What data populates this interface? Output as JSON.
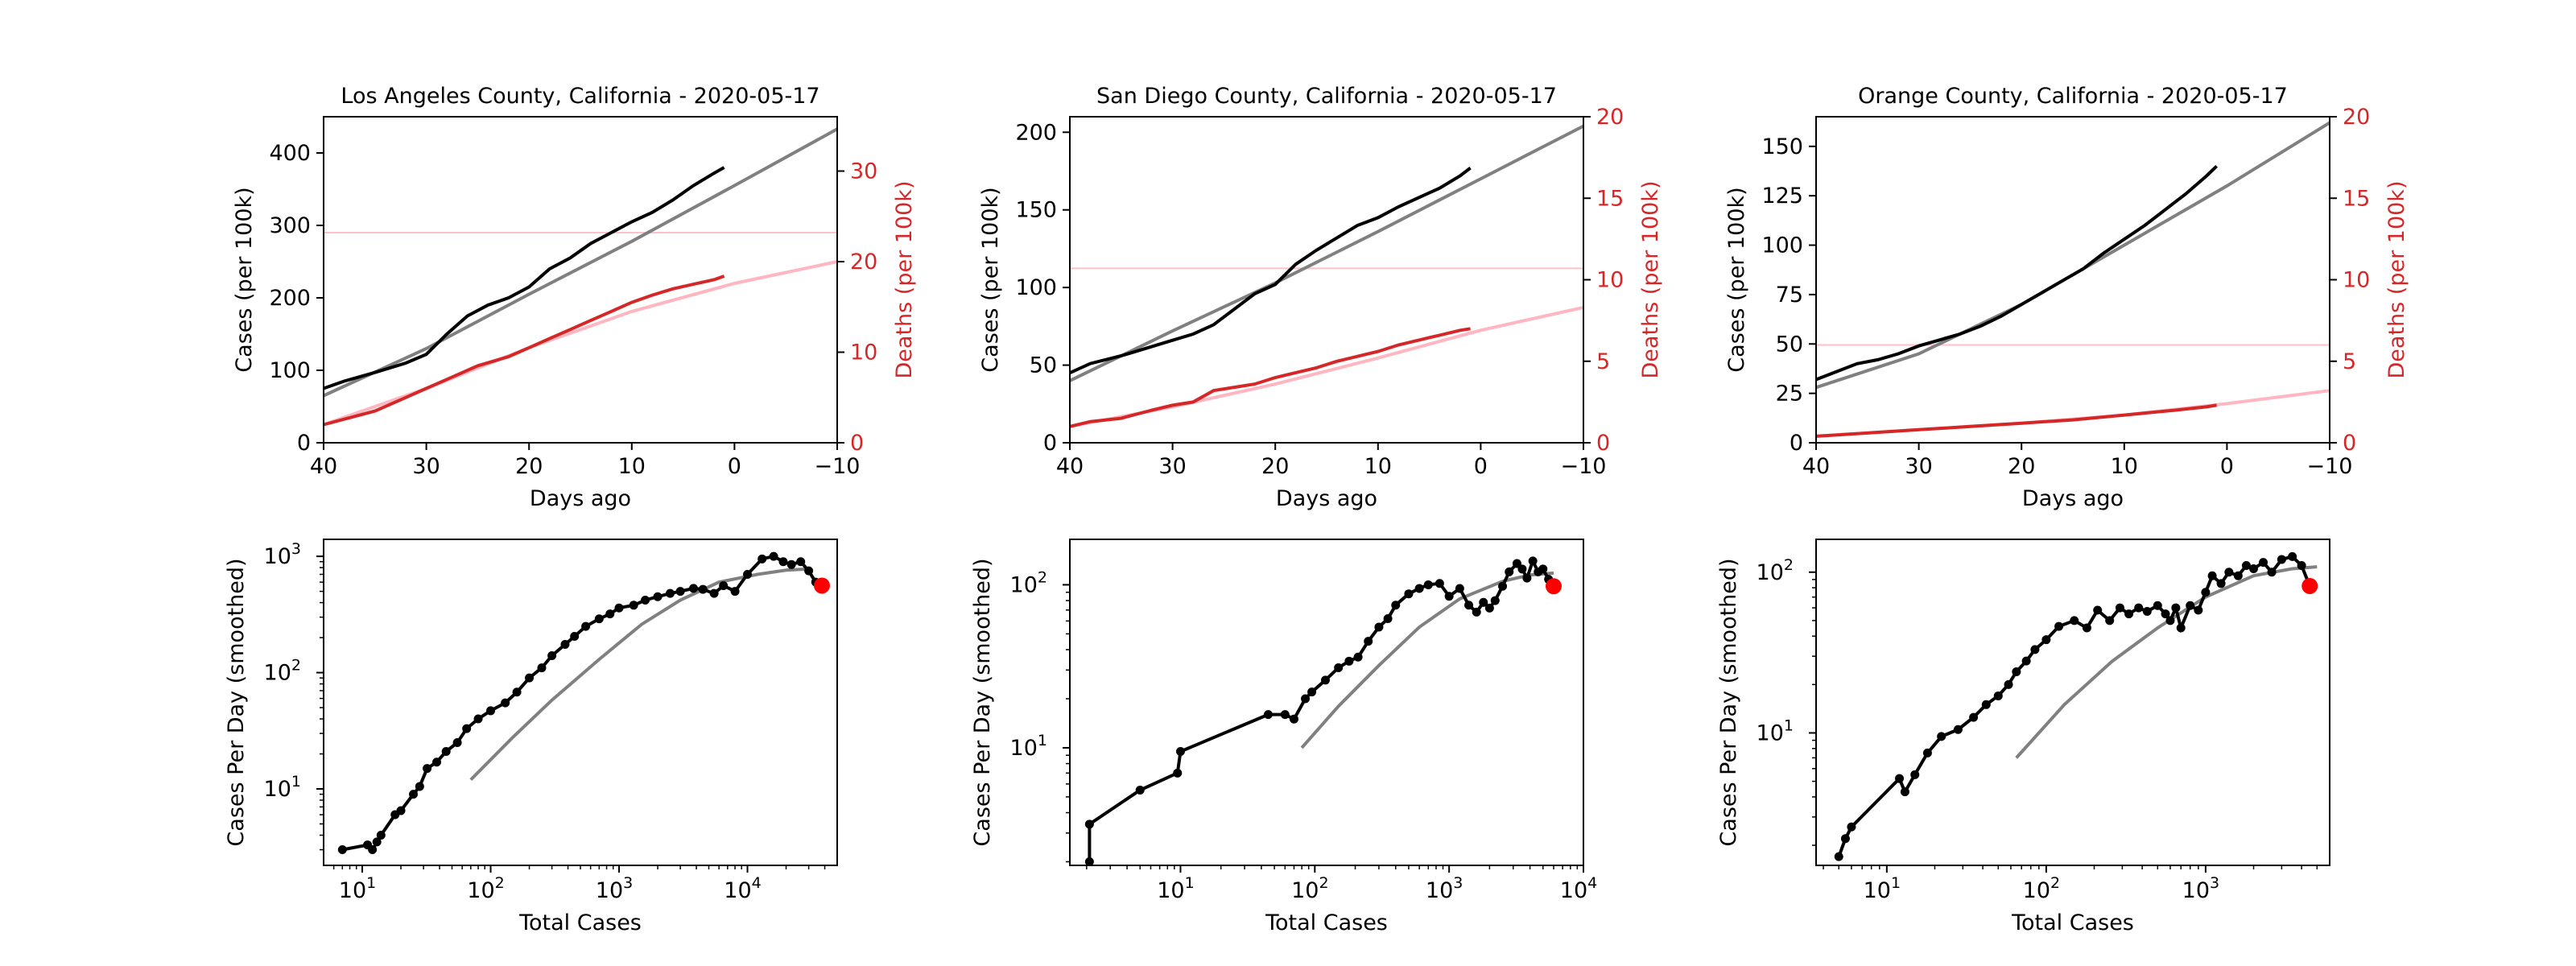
{
  "figure": {
    "background": "#ffffff",
    "colors": {
      "cases": "#000000",
      "deaths": "#d62728",
      "cases_fit": "#808080",
      "deaths_fit": "#ffb6c1",
      "ref_line": "#ffc0cb",
      "latest_point": "#ff0000"
    }
  },
  "chart_data": [
    {
      "type": "line",
      "panel": "la-top",
      "title": "Los Angeles County, California - 2020-05-17",
      "xlabel": "Days ago",
      "ylabel": "Cases (per 100k)",
      "y2label": "Deaths (per 100k)",
      "xlim": [
        40,
        -10
      ],
      "ylim": [
        0,
        450
      ],
      "y2lim": [
        0,
        36
      ],
      "xticks": [
        40,
        30,
        20,
        10,
        0,
        -10
      ],
      "xtick_labels": [
        "40",
        "30",
        "20",
        "10",
        "0",
        "−10"
      ],
      "yticks": [
        0,
        100,
        200,
        300,
        400
      ],
      "yticks2": [
        0,
        10,
        20,
        30
      ],
      "ref_line_y2": 23.2,
      "cases": {
        "x": [
          40,
          38,
          35,
          32,
          30,
          28,
          26,
          24,
          22,
          20,
          18,
          16,
          14,
          12,
          10,
          8,
          6,
          4,
          2,
          1
        ],
        "y": [
          75,
          85,
          97,
          110,
          122,
          150,
          175,
          190,
          200,
          215,
          240,
          255,
          275,
          290,
          305,
          318,
          335,
          355,
          372,
          380
        ]
      },
      "cases_fit": {
        "x": [
          40,
          30,
          20,
          10,
          0,
          -10
        ],
        "y": [
          65,
          130,
          205,
          278,
          355,
          433
        ]
      },
      "deaths": {
        "x": [
          40,
          35,
          32,
          30,
          28,
          25,
          22,
          20,
          18,
          16,
          14,
          12,
          10,
          8,
          6,
          4,
          2,
          1
        ],
        "y": [
          2,
          3.5,
          5,
          6,
          7,
          8.5,
          9.5,
          10.5,
          11.5,
          12.5,
          13.5,
          14.5,
          15.5,
          16.3,
          17,
          17.5,
          18,
          18.4
        ]
      },
      "deaths_fit": {
        "x": [
          40,
          30,
          20,
          10,
          0,
          -10
        ],
        "y": [
          2,
          6,
          10.5,
          14.5,
          17.6,
          20
        ]
      }
    },
    {
      "type": "line",
      "panel": "sd-top",
      "title": "San Diego County, California - 2020-05-17",
      "xlabel": "Days ago",
      "ylabel": "Cases (per 100k)",
      "y2label": "Deaths (per 100k)",
      "xlim": [
        40,
        -10
      ],
      "ylim": [
        0,
        210
      ],
      "y2lim": [
        0,
        20
      ],
      "xticks": [
        40,
        30,
        20,
        10,
        0,
        -10
      ],
      "xtick_labels": [
        "40",
        "30",
        "20",
        "10",
        "0",
        "−10"
      ],
      "yticks": [
        0,
        50,
        100,
        150,
        200
      ],
      "yticks2": [
        0,
        5,
        10,
        15,
        20
      ],
      "ref_line_y2": 10.7,
      "cases": {
        "x": [
          40,
          38,
          35,
          32,
          30,
          28,
          26,
          24,
          22,
          20,
          18,
          16,
          14,
          12,
          10,
          8,
          6,
          4,
          2,
          1
        ],
        "y": [
          45,
          51,
          56,
          62,
          66,
          70,
          76,
          86,
          96,
          102,
          115,
          124,
          132,
          140,
          145,
          152,
          158,
          164,
          172,
          177
        ]
      },
      "cases_fit": {
        "x": [
          40,
          30,
          20,
          10,
          0,
          -10
        ],
        "y": [
          40,
          72,
          103,
          136,
          170,
          204
        ]
      },
      "deaths": {
        "x": [
          40,
          38,
          35,
          32,
          30,
          28,
          26,
          24,
          22,
          20,
          18,
          16,
          14,
          12,
          10,
          8,
          6,
          4,
          2,
          1
        ],
        "y": [
          1,
          1.3,
          1.5,
          2,
          2.3,
          2.5,
          3.2,
          3.4,
          3.6,
          4,
          4.3,
          4.6,
          5,
          5.3,
          5.6,
          6,
          6.3,
          6.6,
          6.9,
          7
        ]
      },
      "deaths_fit": {
        "x": [
          40,
          30,
          20,
          10,
          0,
          -10
        ],
        "y": [
          1,
          2.2,
          3.6,
          5.2,
          6.9,
          8.3
        ]
      }
    },
    {
      "type": "line",
      "panel": "oc-top",
      "title": "Orange County, California - 2020-05-17",
      "xlabel": "Days ago",
      "ylabel": "Cases (per 100k)",
      "y2label": "Deaths (per 100k)",
      "xlim": [
        40,
        -10
      ],
      "ylim": [
        0,
        165
      ],
      "y2lim": [
        0,
        20
      ],
      "xticks": [
        40,
        30,
        20,
        10,
        0,
        -10
      ],
      "xtick_labels": [
        "40",
        "30",
        "20",
        "10",
        "0",
        "−10"
      ],
      "yticks": [
        0,
        25,
        50,
        75,
        100,
        125,
        150
      ],
      "yticks2": [
        0,
        5,
        10,
        15,
        20
      ],
      "ref_line_y2": 6,
      "cases": {
        "x": [
          40,
          38,
          36,
          34,
          32,
          30,
          28,
          26,
          24,
          22,
          20,
          18,
          16,
          14,
          12,
          10,
          8,
          6,
          4,
          2,
          1
        ],
        "y": [
          32,
          36,
          40,
          42,
          45,
          49,
          52,
          55,
          59,
          64,
          70,
          76,
          82,
          88,
          96,
          103,
          110,
          118,
          126,
          135,
          140
        ]
      },
      "cases_fit": {
        "x": [
          40,
          30,
          20,
          10,
          0,
          -10
        ],
        "y": [
          28,
          45,
          70,
          100,
          130,
          162
        ]
      },
      "deaths": {
        "x": [
          40,
          35,
          30,
          25,
          20,
          15,
          10,
          5,
          2,
          1
        ],
        "y": [
          0.4,
          0.6,
          0.8,
          1,
          1.2,
          1.4,
          1.7,
          2,
          2.2,
          2.3
        ]
      },
      "deaths_fit": {
        "x": [
          40,
          30,
          20,
          10,
          0,
          -10
        ],
        "y": [
          0.4,
          0.8,
          1.2,
          1.7,
          2.4,
          3.2
        ]
      }
    },
    {
      "type": "scatter",
      "panel": "la-bottom",
      "scale": "log-log",
      "xlabel": "Total Cases",
      "ylabel": "Cases Per Day (smoothed)",
      "xlim": [
        5,
        50000
      ],
      "ylim": [
        2.2,
        1400
      ],
      "xticks": [
        10,
        100,
        1000,
        10000
      ],
      "yticks": [
        10,
        100,
        1000
      ],
      "points": {
        "x": [
          7,
          11,
          12,
          13,
          14,
          18,
          20,
          25,
          28,
          32,
          38,
          45,
          55,
          65,
          80,
          100,
          130,
          160,
          200,
          250,
          300,
          380,
          450,
          550,
          700,
          850,
          1000,
          1300,
          1600,
          2000,
          2500,
          3000,
          3800,
          4500,
          5500,
          6500,
          8000,
          10000,
          13000,
          16000,
          19000,
          22000,
          26000,
          30000,
          34000,
          38000
        ],
        "y": [
          3,
          3.3,
          3,
          3.5,
          4,
          6,
          6.5,
          9,
          10.5,
          15,
          17,
          21,
          25,
          33,
          40,
          47,
          55,
          68,
          90,
          110,
          140,
          175,
          205,
          250,
          290,
          320,
          360,
          380,
          420,
          450,
          480,
          500,
          530,
          520,
          480,
          560,
          500,
          700,
          950,
          1000,
          900,
          850,
          900,
          750,
          600,
          560
        ]
      },
      "fit": {
        "x": [
          70,
          150,
          300,
          700,
          1500,
          3000,
          6000,
          12000,
          20000,
          30000
        ],
        "y": [
          12,
          28,
          58,
          130,
          260,
          420,
          600,
          700,
          760,
          780
        ]
      },
      "latest": {
        "x": [
          38000
        ],
        "y": [
          560
        ]
      }
    },
    {
      "type": "scatter",
      "panel": "sd-bottom",
      "scale": "log-log",
      "xlabel": "Total Cases",
      "ylabel": "Cases Per Day (smoothed)",
      "xlim": [
        1.5,
        10000
      ],
      "ylim": [
        1.9,
        190
      ],
      "xticks": [
        10,
        100,
        1000,
        10000
      ],
      "yticks": [
        10,
        100
      ],
      "points": {
        "x": [
          2.1,
          2.1,
          5,
          9.5,
          10,
          45,
          60,
          70,
          85,
          95,
          120,
          150,
          180,
          210,
          250,
          300,
          350,
          400,
          500,
          600,
          700,
          850,
          1000,
          1200,
          1400,
          1600,
          1800,
          2000,
          2200,
          2500,
          2800,
          3200,
          3500,
          3800,
          4200,
          4600,
          5000,
          5500,
          6000
        ],
        "y": [
          2,
          3.4,
          5.5,
          7,
          9.5,
          16,
          16,
          15,
          20,
          22,
          26,
          31,
          34,
          36,
          45,
          55,
          62,
          75,
          88,
          95,
          100,
          102,
          85,
          95,
          75,
          68,
          78,
          72,
          80,
          98,
          120,
          135,
          125,
          110,
          140,
          120,
          125,
          108,
          98
        ]
      },
      "fit": {
        "x": [
          80,
          150,
          300,
          600,
          1200,
          2500,
          4000,
          6000
        ],
        "y": [
          10,
          18,
          32,
          55,
          82,
          105,
          115,
          118
        ]
      },
      "latest": {
        "x": [
          6000
        ],
        "y": [
          98
        ]
      }
    },
    {
      "type": "scatter",
      "panel": "oc-bottom",
      "scale": "log-log",
      "xlabel": "Total Cases",
      "ylabel": "Cases Per Day (smoothed)",
      "xlim": [
        3.6,
        6000
      ],
      "ylim": [
        1.5,
        160
      ],
      "xticks": [
        10,
        100,
        1000
      ],
      "yticks": [
        10,
        100
      ],
      "points": {
        "x": [
          5,
          5.5,
          6,
          12,
          13,
          15,
          18,
          22,
          28,
          35,
          42,
          50,
          58,
          65,
          75,
          85,
          100,
          120,
          150,
          180,
          210,
          250,
          290,
          330,
          380,
          430,
          500,
          560,
          600,
          650,
          700,
          800,
          900,
          1000,
          1100,
          1250,
          1400,
          1600,
          1800,
          2000,
          2300,
          2600,
          3000,
          3500,
          4000,
          4500
        ],
        "y": [
          1.7,
          2.2,
          2.6,
          5.2,
          4.3,
          5.5,
          7.5,
          9.5,
          10.5,
          12.5,
          15,
          17,
          20,
          24,
          28,
          33,
          38,
          46,
          50,
          45,
          58,
          50,
          60,
          55,
          60,
          57,
          62,
          55,
          50,
          60,
          45,
          62,
          58,
          75,
          95,
          85,
          100,
          95,
          110,
          105,
          115,
          100,
          120,
          125,
          110,
          82
        ]
      },
      "fit": {
        "x": [
          65,
          130,
          260,
          500,
          1000,
          2000,
          3500,
          5000
        ],
        "y": [
          7,
          15,
          28,
          45,
          70,
          95,
          105,
          108
        ]
      },
      "latest": {
        "x": [
          4500
        ],
        "y": [
          82
        ]
      }
    }
  ]
}
